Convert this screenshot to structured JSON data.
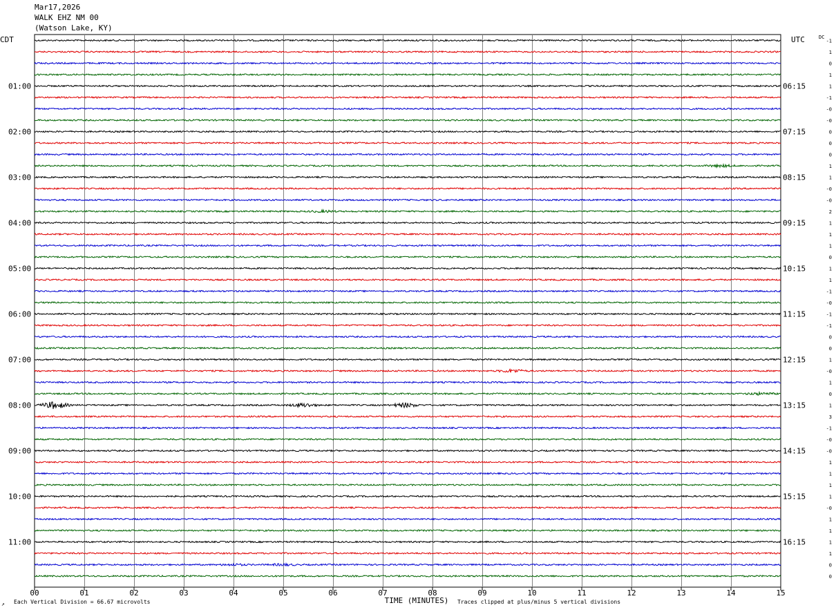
{
  "header": {
    "date": "Mar17,2026",
    "station": "WALK EHZ NM 00",
    "location": "(Watson Lake, KY)"
  },
  "left_zone": "CDT",
  "right_zone": "UTC",
  "dc_label": "DC",
  "footer": {
    "scale_note": "Each Vertical Division =   66.67 microvolts",
    "clip_note": "Traces clipped at plus/minus 5 vertical divisions",
    "corner_mark": "↗"
  },
  "chart_data": {
    "type": "line",
    "title": "",
    "xlabel": "TIME (MINUTES)",
    "x_ticks": [
      "00",
      "01",
      "02",
      "03",
      "04",
      "05",
      "06",
      "07",
      "08",
      "09",
      "10",
      "11",
      "12",
      "13",
      "14",
      "15"
    ],
    "xlim": [
      0,
      15
    ],
    "left_hour_labels": [
      "01:00",
      "02:00",
      "03:00",
      "04:00",
      "05:00",
      "06:00",
      "07:00",
      "08:00",
      "09:00",
      "10:00",
      "11:00"
    ],
    "right_hour_labels": [
      "06:15",
      "07:15",
      "08:15",
      "09:15",
      "10:15",
      "11:15",
      "12:15",
      "13:15",
      "14:15",
      "15:15",
      "16:15"
    ],
    "trace_count": 48,
    "trace_colors": [
      "#000000",
      "#e00000",
      "#0000d0",
      "#006400"
    ],
    "dc_offsets": [
      "-1",
      "1",
      "0",
      "1",
      "1",
      "-1",
      "-0",
      "-0",
      "0",
      "0",
      "0",
      "1",
      "1",
      "-0",
      "-0",
      "2",
      "1",
      "1",
      "1",
      "0",
      "1",
      "1",
      "-1",
      "-0",
      "-1",
      "-1",
      "0",
      "0",
      "1",
      "-0",
      "1",
      "0",
      "1",
      "3",
      "-1",
      "-0",
      "-0",
      "1",
      "1",
      "1",
      "1",
      "-0",
      "1",
      "1",
      "1",
      "1",
      "0",
      "0"
    ],
    "events": [
      {
        "trace": 32,
        "minute": 0.4,
        "amplitude": 5
      },
      {
        "trace": 32,
        "minute": 5.4,
        "amplitude": 2.5
      },
      {
        "trace": 32,
        "minute": 7.45,
        "amplitude": 3
      },
      {
        "trace": 29,
        "minute": 9.6,
        "amplitude": 2
      },
      {
        "trace": 31,
        "minute": 14.6,
        "amplitude": 1.5
      },
      {
        "trace": 46,
        "minute": 5.0,
        "amplitude": 1.2
      },
      {
        "trace": 46,
        "minute": 4.0,
        "amplitude": 1.0
      },
      {
        "trace": 15,
        "minute": 5.8,
        "amplitude": 1.2
      },
      {
        "trace": 11,
        "minute": 13.8,
        "amplitude": 1.5
      }
    ]
  }
}
